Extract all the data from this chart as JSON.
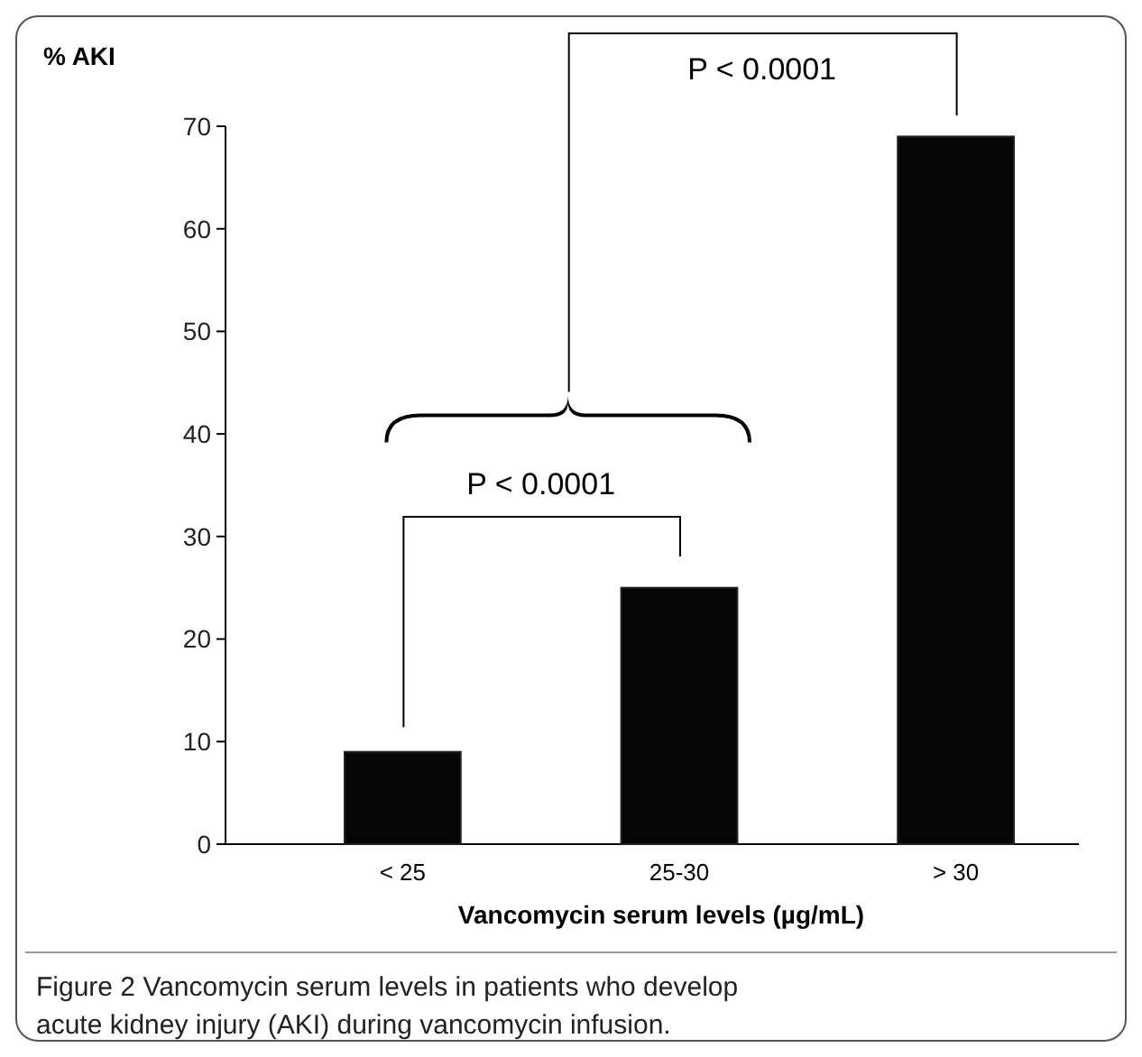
{
  "chart_data": {
    "type": "bar",
    "ylabel": "% AKI",
    "xlabel": "Vancomycin serum levels (µg/mL)",
    "categories": [
      "< 25",
      "25-30",
      "> 30"
    ],
    "values": [
      9,
      25,
      69
    ],
    "color": "#050505",
    "ylim": [
      0,
      70
    ],
    "yticks": [
      0,
      10,
      20,
      30,
      40,
      50,
      60,
      70
    ],
    "grid": false,
    "annotations": [
      "P < 0.0001",
      "P < 0.0001",
      "Figure 2 Vancomycin serum levels in patients who develop acute kidney injury (AKI) during vancomycin infusion."
    ]
  }
}
